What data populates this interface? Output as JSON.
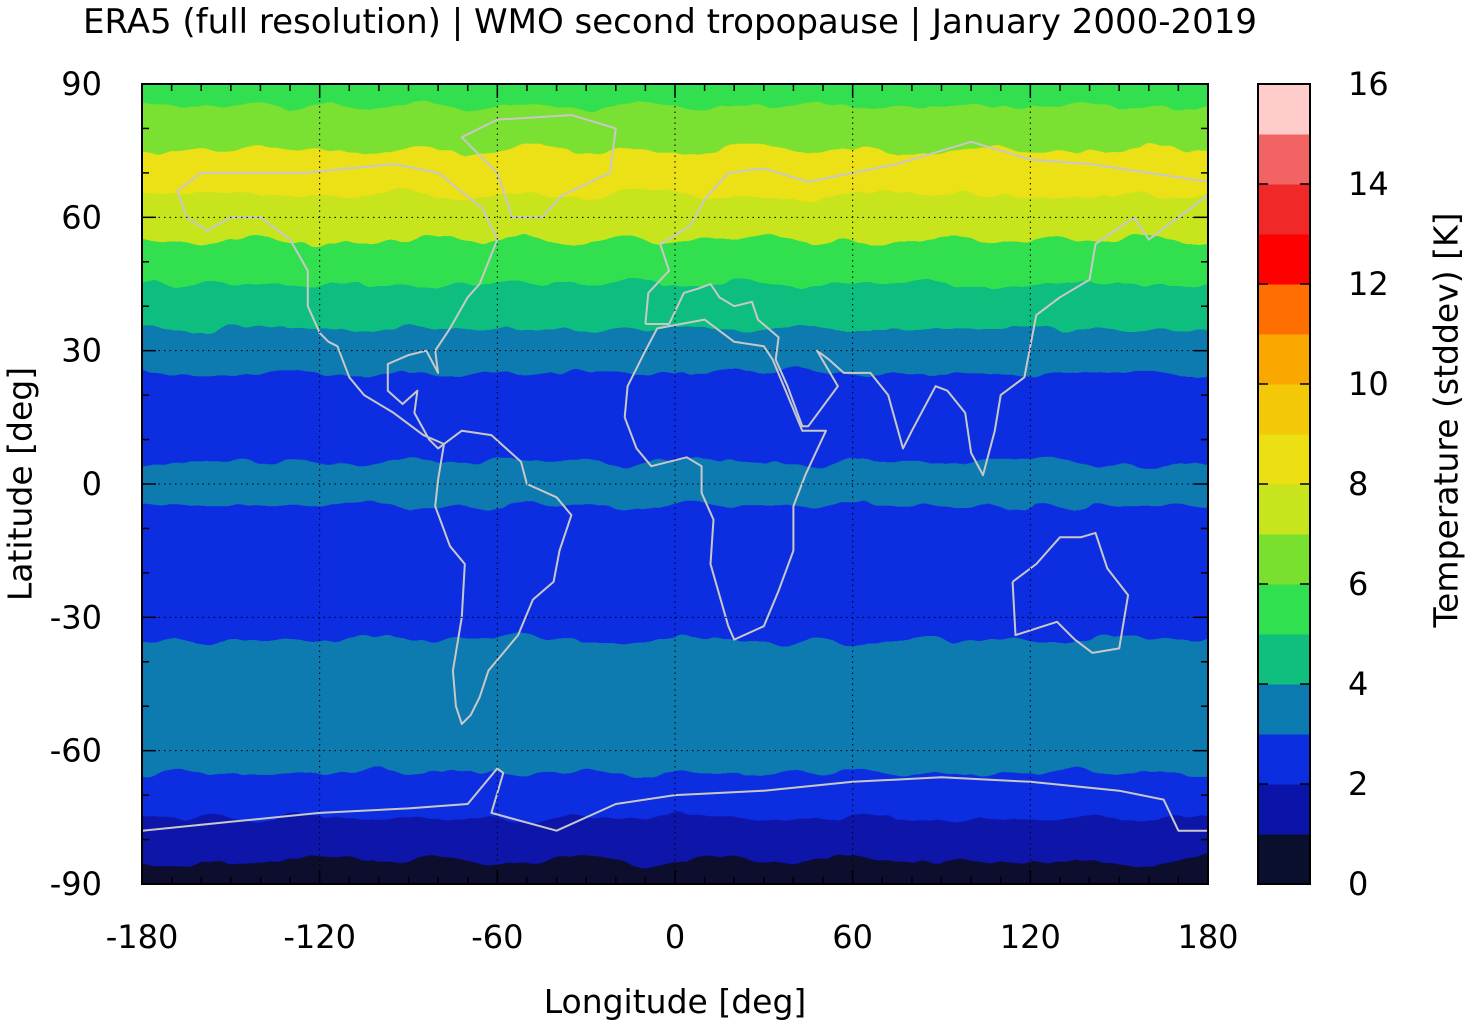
{
  "chart_data": {
    "type": "heatmap",
    "title": "ERA5 (full resolution) | WMO second tropopause | January 2000-2019",
    "xlabel": "Longitude [deg]",
    "ylabel": "Latitude [deg]",
    "colorbar_label": "Temperature (stddev) [K]",
    "xlim": [
      -180,
      180
    ],
    "ylim": [
      -90,
      90
    ],
    "x_ticks": [
      "-180",
      "-120",
      "-60",
      "0",
      "60",
      "120",
      "180"
    ],
    "y_ticks": [
      "90",
      "60",
      "30",
      "0",
      "-30",
      "-60",
      "-90"
    ],
    "colorbar_ticks": [
      "0",
      "2",
      "4",
      "6",
      "8",
      "10",
      "12",
      "14",
      "16"
    ],
    "colorbar_range": [
      0,
      16
    ],
    "grid": true,
    "colormap": [
      {
        "from": 0,
        "to": 1,
        "color": "#0b0f2e"
      },
      {
        "from": 1,
        "to": 2,
        "color": "#0a14a8"
      },
      {
        "from": 2,
        "to": 3,
        "color": "#0b2ee0"
      },
      {
        "from": 3,
        "to": 4,
        "color": "#0a7ab0"
      },
      {
        "from": 4,
        "to": 5,
        "color": "#10be7e"
      },
      {
        "from": 5,
        "to": 6,
        "color": "#30e050"
      },
      {
        "from": 6,
        "to": 7,
        "color": "#7ae030"
      },
      {
        "from": 7,
        "to": 8,
        "color": "#c8e41c"
      },
      {
        "from": 8,
        "to": 9,
        "color": "#ece012"
      },
      {
        "from": 9,
        "to": 10,
        "color": "#f2c808"
      },
      {
        "from": 10,
        "to": 11,
        "color": "#faa800"
      },
      {
        "from": 11,
        "to": 12,
        "color": "#ff6e00"
      },
      {
        "from": 12,
        "to": 13,
        "color": "#ff0000"
      },
      {
        "from": 13,
        "to": 14,
        "color": "#f02828"
      },
      {
        "from": 14,
        "to": 15,
        "color": "#f26464"
      },
      {
        "from": 15,
        "to": 16,
        "color": "#ffcccc"
      }
    ],
    "zonal_mean_stddev_by_latitude": [
      {
        "lat": 90,
        "value": 5.0
      },
      {
        "lat": 80,
        "value": 6.5
      },
      {
        "lat": 70,
        "value": 8.5
      },
      {
        "lat": 60,
        "value": 7.2
      },
      {
        "lat": 50,
        "value": 5.2
      },
      {
        "lat": 40,
        "value": 4.4
      },
      {
        "lat": 30,
        "value": 3.6
      },
      {
        "lat": 20,
        "value": 2.6
      },
      {
        "lat": 10,
        "value": 2.2
      },
      {
        "lat": 0,
        "value": 3.2
      },
      {
        "lat": -10,
        "value": 2.8
      },
      {
        "lat": -20,
        "value": 2.2
      },
      {
        "lat": -30,
        "value": 2.8
      },
      {
        "lat": -40,
        "value": 3.5
      },
      {
        "lat": -50,
        "value": 3.8
      },
      {
        "lat": -60,
        "value": 3.4
      },
      {
        "lat": -70,
        "value": 2.5
      },
      {
        "lat": -80,
        "value": 1.5
      },
      {
        "lat": -90,
        "value": 0.5
      }
    ],
    "coastline_color": "#c8c8c8"
  }
}
